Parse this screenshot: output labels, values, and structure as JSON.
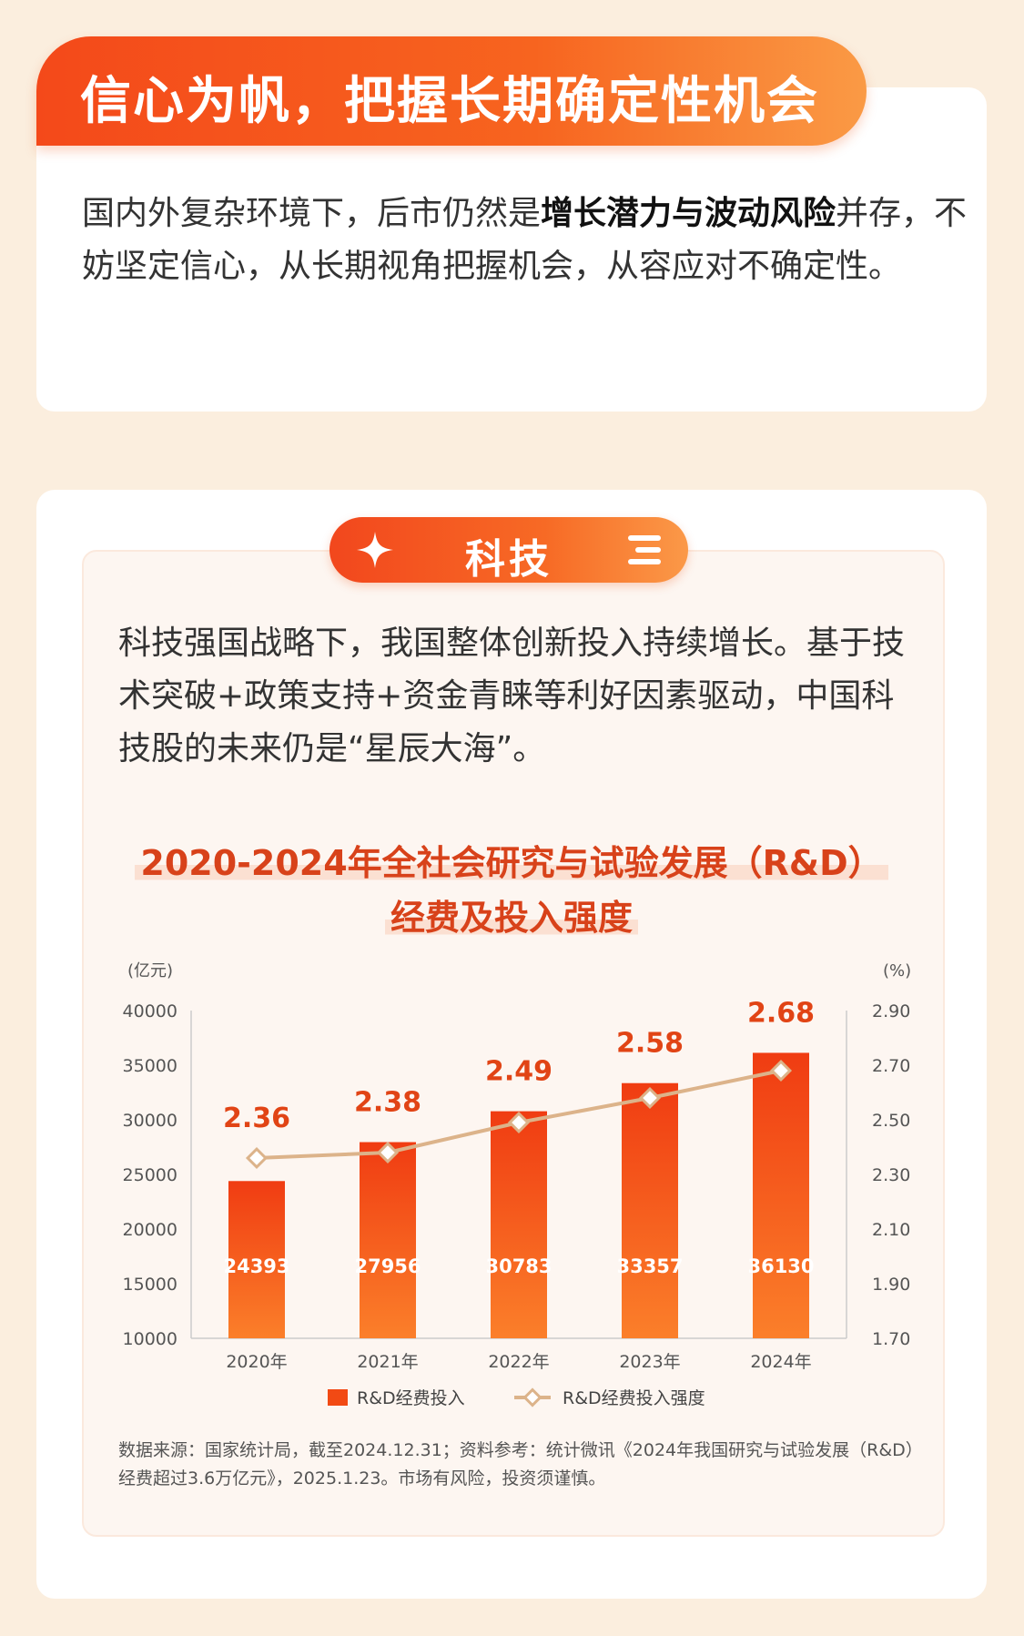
{
  "header": {
    "title": "信心为帆，把握长期确定性机会",
    "intro_before": "国内外复杂环境下，后市仍然是",
    "intro_bold": "增长潜力与波动风险",
    "intro_after": "并存，不妨坚定信心，从长期视角把握机会，从容应对不确定性。"
  },
  "section": {
    "pill_label": "科技",
    "text": "科技强国战略下，我国整体创新投入持续增长。基于技术突破+政策支持+资金青睐等利好因素驱动，中国科技股的未来仍是“星辰大海”。",
    "chart_title_line1": "2020-2024年全社会研究与试验发展（R&D）",
    "chart_title_line2": "经费及投入强度",
    "source": "数据来源：国家统计局，截至2024.12.31；资料参考：统计微讯《2024年我国研究与试验发展（R&D）经费超过3.6万亿元》，2025.1.23。市场有风险，投资须谨慎。"
  },
  "chart_data": {
    "type": "bar",
    "categories": [
      "2020年",
      "2021年",
      "2022年",
      "2023年",
      "2024年"
    ],
    "series": [
      {
        "name": "R&D经费投入",
        "type": "bar",
        "axis": "left",
        "values": [
          24393,
          27956,
          30783,
          33357,
          36130
        ]
      },
      {
        "name": "R&D经费投入强度",
        "type": "line",
        "axis": "right",
        "values": [
          2.36,
          2.38,
          2.49,
          2.58,
          2.68
        ]
      }
    ],
    "left_axis": {
      "unit": "(亿元)",
      "min": 10000,
      "max": 40000,
      "ticks": [
        "10000",
        "15000",
        "20000",
        "25000",
        "30000",
        "35000",
        "40000"
      ]
    },
    "right_axis": {
      "unit": "(%)",
      "min": 1.7,
      "max": 2.9,
      "ticks": [
        "1.70",
        "1.90",
        "2.10",
        "2.30",
        "2.50",
        "2.70",
        "2.90"
      ]
    },
    "legend_position": "bottom",
    "grid": false,
    "colors": {
      "bar": "#f24a14",
      "line": "#dcb38a",
      "label": "#e14415"
    }
  }
}
